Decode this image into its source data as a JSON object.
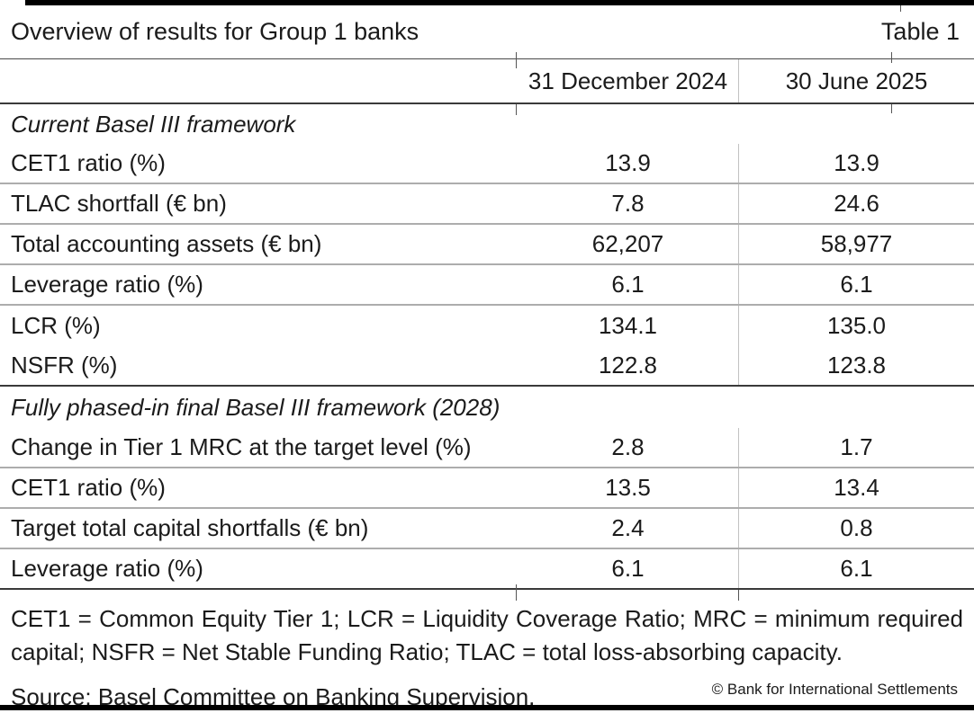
{
  "header": {
    "title": "Overview of results for Group 1 banks",
    "table_label": "Table 1"
  },
  "columns": {
    "col1": "31 December 2024",
    "col2": "30 June 2025"
  },
  "sections": [
    {
      "heading": "Current Basel III framework",
      "rows": [
        {
          "label": "CET1 ratio (%)",
          "v1": "13.9",
          "v2": "13.9"
        },
        {
          "label": "TLAC shortfall (€ bn)",
          "v1": "7.8",
          "v2": "24.6"
        },
        {
          "label": "Total accounting assets (€ bn)",
          "v1": "62,207",
          "v2": "58,977"
        },
        {
          "label": "Leverage ratio (%)",
          "v1": "6.1",
          "v2": "6.1"
        },
        {
          "label": "LCR (%)",
          "v1": "134.1",
          "v2": "135.0"
        },
        {
          "label": "NSFR (%)",
          "v1": "122.8",
          "v2": "123.8"
        }
      ]
    },
    {
      "heading": "Fully phased-in final Basel III framework (2028)",
      "rows": [
        {
          "label": "Change in Tier 1 MRC at the target level (%)",
          "v1": "2.8",
          "v2": "1.7"
        },
        {
          "label": "CET1 ratio (%)",
          "v1": "13.5",
          "v2": "13.4"
        },
        {
          "label": "Target total capital shortfalls (€ bn)",
          "v1": "2.4",
          "v2": "0.8"
        },
        {
          "label": "Leverage ratio (%)",
          "v1": "6.1",
          "v2": "6.1"
        }
      ]
    }
  ],
  "footnote": {
    "line1": "CET1 = Common Equity Tier 1; LCR = Liquidity Coverage Ratio; MRC = minimum required",
    "line2": "capital; NSFR = Net Stable Funding Ratio; TLAC = total loss-absorbing capacity."
  },
  "source": "Source: Basel Committee on Banking Supervision.",
  "copyright": "© Bank for International Settlements",
  "colors": {
    "bar": "#000000",
    "rule_dark": "#3a3a3a",
    "rule_light": "#adadad",
    "divider": "#c2c2c2",
    "text": "#1b1b1b"
  }
}
